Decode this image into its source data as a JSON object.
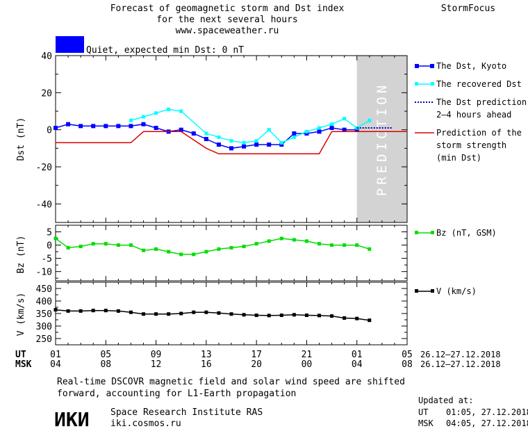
{
  "header": {
    "title_line1": "Forecast of geomagnetic storm and Dst index",
    "title_line2": "for the next several hours",
    "url": "www.spaceweather.ru",
    "brand": "StormFocus"
  },
  "status": {
    "text": "Quiet, expected min Dst: 0 nT",
    "color": "#0000ff"
  },
  "legend": {
    "dst_kyoto": "The Dst, Kyoto",
    "dst_recovered": "The recovered Dst",
    "dst_pred_line1": "The Dst prediction",
    "dst_pred_line2": "2–4 hours ahead",
    "storm_line1": "Prediction of the",
    "storm_line2": "storm strength",
    "storm_line3": "(min Dst)",
    "bz": "Bz (nT, GSM)",
    "v": "V (km/s)"
  },
  "prediction_label": "PREDICTION",
  "time_axis": {
    "ut_label": "UT",
    "msk_label": "MSK",
    "ut_ticks": [
      "01",
      "05",
      "09",
      "13",
      "17",
      "21",
      "01",
      "05"
    ],
    "msk_ticks": [
      "04",
      "08",
      "12",
      "16",
      "20",
      "00",
      "04",
      "08"
    ],
    "ut_range": "26.12–27.12.2018",
    "msk_range": "26.12–27.12.2018"
  },
  "footer": {
    "note_line1": "Real-time DSCOVR magnetic field and solar wind speed are shifted",
    "note_line2": "forward, accounting for L1-Earth propagation",
    "institute": "Space Research Institute RAS",
    "site": "iki.cosmos.ru",
    "logo_text": "ИКИ",
    "updated_label": "Updated at:",
    "updated_ut_label": "UT",
    "updated_ut": "01:05, 27.12.2018",
    "updated_msk_label": "MSK",
    "updated_msk": "04:05, 27.12.2018"
  },
  "chart_data": [
    {
      "type": "line",
      "ylabel": "Dst (nT)",
      "ylim": [
        -50,
        40
      ],
      "yticks": [
        40,
        20,
        0,
        -20,
        -40
      ],
      "x_unit": "hours after 01 UT 26.12.2018",
      "xlim": [
        0,
        28
      ],
      "prediction_from": 24,
      "series": [
        {
          "name": "The Dst, Kyoto",
          "color": "#0000ff",
          "marker": "square",
          "x": [
            0,
            1,
            2,
            3,
            4,
            5,
            6,
            7,
            8,
            9,
            10,
            11,
            12,
            13,
            14,
            15,
            16,
            17,
            18,
            19,
            20,
            21,
            22,
            23,
            24
          ],
          "y": [
            1,
            3,
            2,
            2,
            2,
            2,
            2,
            3,
            1,
            -1,
            0,
            -2,
            -5,
            -8,
            -10,
            -9,
            -8,
            -8,
            -8,
            -2,
            -2,
            -1,
            1,
            0,
            0
          ]
        },
        {
          "name": "The recovered Dst",
          "color": "#00ffff",
          "marker": "square",
          "x": [
            6,
            7,
            8,
            9,
            10,
            12,
            13,
            14,
            15,
            16,
            17,
            18,
            19,
            20,
            21,
            22,
            23,
            24,
            25
          ],
          "y": [
            5,
            7,
            9,
            11,
            10,
            -2,
            -4,
            -6,
            -7,
            -6,
            0,
            -7,
            -4,
            -1,
            1,
            3,
            6,
            1,
            5
          ]
        },
        {
          "name": "The Dst prediction",
          "color": "#0000aa",
          "style": "dotted",
          "x": [
            24,
            26.8
          ],
          "y": [
            1,
            1
          ]
        },
        {
          "name": "Prediction of the storm strength (min Dst)",
          "color": "#dd0000",
          "x": [
            0,
            6,
            7,
            10,
            12,
            13,
            21,
            22,
            28
          ],
          "y": [
            -7,
            -7,
            -1,
            -1,
            -10,
            -13,
            -13,
            -1,
            -1
          ]
        }
      ]
    },
    {
      "type": "line",
      "ylabel": "Bz (nT)",
      "ylim": [
        -13.5,
        7.5
      ],
      "yticks": [
        5,
        0,
        -5,
        -10
      ],
      "series": [
        {
          "name": "Bz (nT, GSM)",
          "color": "#00dd00",
          "marker": "square",
          "x": [
            0,
            1,
            2,
            3,
            4,
            5,
            6,
            7,
            8,
            9,
            10,
            11,
            12,
            13,
            14,
            15,
            16,
            17,
            18,
            19,
            20,
            21,
            22,
            23,
            24,
            25
          ],
          "y": [
            2.5,
            -1,
            -0.5,
            0.5,
            0.5,
            0,
            0,
            -2,
            -1.5,
            -2.5,
            -3.5,
            -3.5,
            -2.5,
            -1.5,
            -1,
            -0.5,
            0.5,
            1.5,
            2.5,
            2,
            1.5,
            0.5,
            0,
            0,
            0,
            -1.5
          ]
        }
      ]
    },
    {
      "type": "line",
      "ylabel": "V (km/s)",
      "ylim": [
        225,
        475
      ],
      "yticks": [
        450,
        400,
        350,
        300,
        250
      ],
      "series": [
        {
          "name": "V (km/s)",
          "color": "#000000",
          "marker": "square",
          "x": [
            0,
            1,
            2,
            3,
            4,
            5,
            6,
            7,
            8,
            9,
            10,
            11,
            12,
            13,
            14,
            15,
            16,
            17,
            18,
            19,
            20,
            21,
            22,
            23,
            24,
            25
          ],
          "y": [
            365,
            360,
            360,
            362,
            362,
            360,
            355,
            348,
            348,
            348,
            350,
            355,
            355,
            352,
            348,
            345,
            343,
            342,
            343,
            345,
            343,
            342,
            340,
            332,
            330,
            323
          ]
        }
      ]
    }
  ]
}
